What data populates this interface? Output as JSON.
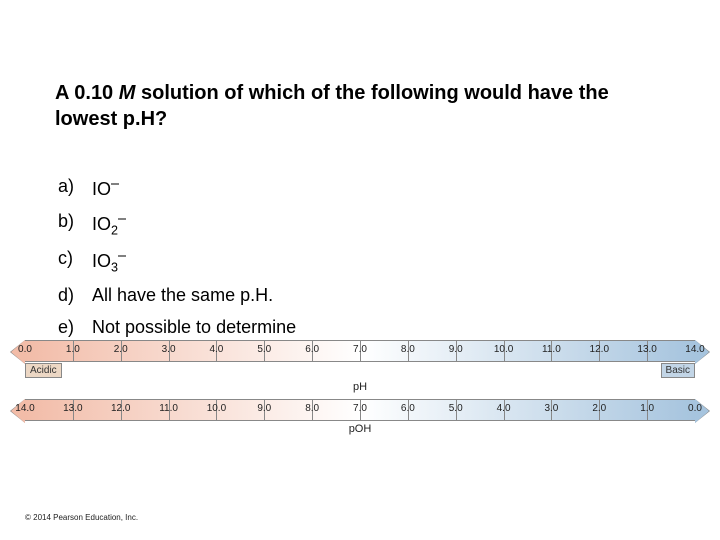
{
  "question": {
    "prefix": "A 0.10 ",
    "italic": "M",
    "suffix": " solution of which of the following would have the lowest p.H?"
  },
  "options": [
    {
      "letter": "a)",
      "text": "IO",
      "sub": "",
      "sup": "–"
    },
    {
      "letter": "b)",
      "text": "IO",
      "sub": "2",
      "sup": "–"
    },
    {
      "letter": "c)",
      "text": "IO",
      "sub": "3",
      "sup": "–"
    },
    {
      "letter": "d)",
      "text": "All have the same p.H.",
      "sub": "",
      "sup": ""
    },
    {
      "letter": "e)",
      "text": "Not possible to determine",
      "sub": "",
      "sup": ""
    }
  ],
  "ph_scale": {
    "label": "pH",
    "left_label": "Acidic",
    "right_label": "Basic",
    "ticks": [
      "0.0",
      "1.0",
      "2.0",
      "3.0",
      "4.0",
      "5.0",
      "6.0",
      "7.0",
      "8.0",
      "9.0",
      "10.0",
      "11.0",
      "12.0",
      "13.0",
      "14.0"
    ],
    "acid_color_start": "#f2bca8",
    "acid_color_end": "#ffffff",
    "base_color_start": "#ffffff",
    "base_color_end": "#a6c4de",
    "acid_box_bg": "#ecd7c4",
    "base_box_bg": "#c2d5e6",
    "border_color": "#888888"
  },
  "poh_scale": {
    "label": "pOH",
    "ticks": [
      "14.0",
      "13.0",
      "12.0",
      "11.0",
      "10.0",
      "9.0",
      "8.0",
      "7.0",
      "6.0",
      "5.0",
      "4.0",
      "3.0",
      "2.0",
      "1.0",
      "0.0"
    ],
    "acid_color_start": "#f2bca8",
    "acid_color_end": "#ffffff",
    "base_color_start": "#ffffff",
    "base_color_end": "#a6c4de"
  },
  "copyright": "© 2014 Pearson Education, Inc."
}
